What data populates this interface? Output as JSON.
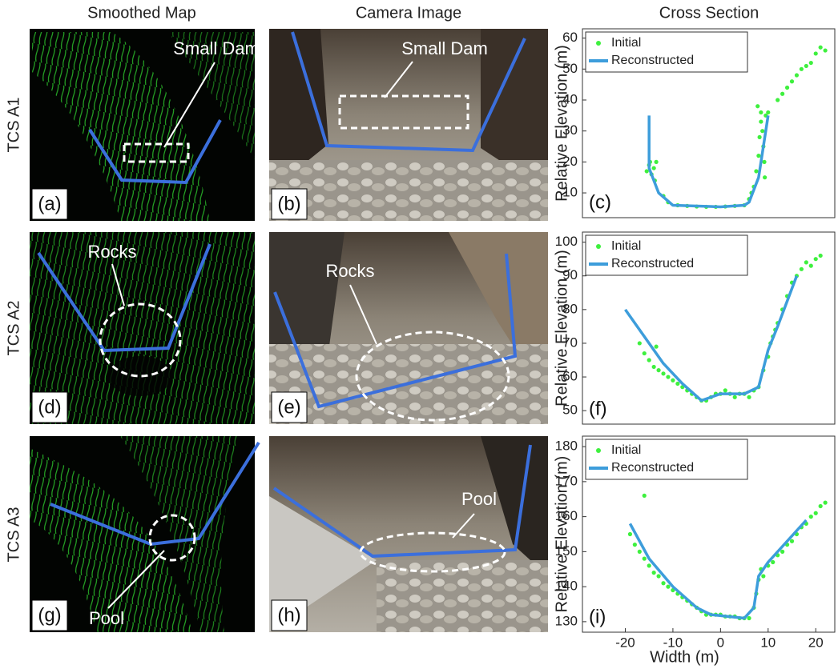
{
  "columns": [
    "Smoothed Map",
    "Camera Image",
    "Cross Section"
  ],
  "rows": [
    {
      "label": "TCS A1",
      "map_panel": "(a)",
      "camera_panel": "(b)",
      "map_note": "Small Dam",
      "camera_note": "Small Dam"
    },
    {
      "label": "TCS A2",
      "map_panel": "(d)",
      "camera_panel": "(e)",
      "map_note": "Rocks",
      "camera_note": "Rocks"
    },
    {
      "label": "TCS A3",
      "map_panel": "(g)",
      "camera_panel": "(h)",
      "map_note": "Pool",
      "camera_note": "Pool"
    }
  ],
  "chart_data": [
    {
      "type": "line",
      "panel": "(c)",
      "ylabel": "Relative Elevation (m)",
      "xlim": [
        -29,
        24
      ],
      "ylim": [
        2,
        63
      ],
      "yticks": [
        10,
        20,
        30,
        40,
        50,
        60
      ],
      "legend": "upper left",
      "series": [
        {
          "name": "Initial",
          "style": "scatter",
          "color": "#3ef03e",
          "x": [
            -15.5,
            -15,
            -14.8,
            -14.5,
            -14,
            -13.5,
            -13.8,
            -12,
            -11,
            -9,
            -7,
            -5,
            -3,
            -1,
            1,
            3,
            5,
            6,
            6.5,
            7,
            7.5,
            8,
            8.2,
            8.5,
            8.8,
            9,
            9.2,
            9.5,
            10,
            8.5,
            7.8,
            9.3,
            12,
            13,
            14,
            15,
            16,
            17,
            18,
            19,
            20,
            21,
            22
          ],
          "values": [
            17,
            19,
            20,
            16,
            18,
            20,
            14,
            9,
            7,
            6,
            5.8,
            5.6,
            5.5,
            5.5,
            5.6,
            5.8,
            6,
            8,
            10,
            12,
            17,
            22,
            28,
            33,
            30,
            25,
            20,
            35,
            36,
            36,
            38,
            15,
            40,
            42,
            44,
            46,
            48,
            50,
            51,
            52,
            55,
            57,
            56
          ]
        },
        {
          "name": "Reconstructed",
          "style": "line",
          "color": "#3d9ddb",
          "x": [
            -15,
            -15,
            -13,
            -10,
            0,
            5,
            6,
            8,
            9,
            10
          ],
          "values": [
            35,
            18,
            10,
            6,
            5.5,
            6,
            7,
            15,
            25,
            35
          ]
        }
      ]
    },
    {
      "type": "line",
      "panel": "(f)",
      "ylabel": "Relative Elevation (m)",
      "xlim": [
        -29,
        24
      ],
      "ylim": [
        46,
        103
      ],
      "yticks": [
        50,
        60,
        70,
        80,
        90,
        100
      ],
      "legend": "upper left",
      "series": [
        {
          "name": "Initial",
          "style": "scatter",
          "color": "#3ef03e",
          "x": [
            -13.5,
            -17,
            -16,
            -15,
            -14,
            -13,
            -12,
            -11,
            -10,
            -9,
            -8,
            -7,
            -6,
            -5,
            -4,
            -3,
            -2,
            -1,
            0,
            1,
            2,
            3,
            4,
            5,
            6,
            7,
            8,
            9,
            10,
            10.5,
            11,
            11.5,
            12,
            13,
            14,
            15,
            16,
            17,
            18,
            19,
            20,
            21
          ],
          "values": [
            69,
            70,
            67,
            65,
            63,
            62,
            61,
            60,
            59,
            58,
            57,
            56,
            55,
            54,
            53,
            53,
            54,
            55,
            55,
            56,
            55,
            54,
            55,
            55,
            54,
            56,
            57,
            62,
            66,
            70,
            72,
            74,
            76,
            80,
            84,
            88,
            90,
            92,
            94,
            93,
            95,
            96
          ]
        },
        {
          "name": "Reconstructed",
          "style": "line",
          "color": "#3d9ddb",
          "x": [
            -20,
            -12,
            -8,
            -4,
            0,
            5,
            8,
            10,
            12,
            16
          ],
          "values": [
            80,
            64,
            58,
            53,
            55,
            55,
            57,
            68,
            75,
            90
          ]
        }
      ]
    },
    {
      "type": "line",
      "panel": "(i)",
      "ylabel": "Relative Elevation (m)",
      "xlabel": "Width (m)",
      "xlim": [
        -29,
        24
      ],
      "ylim": [
        127,
        183
      ],
      "xticks": [
        -20,
        -10,
        0,
        10,
        20
      ],
      "yticks": [
        130,
        140,
        150,
        160,
        170,
        180
      ],
      "legend": "upper left",
      "series": [
        {
          "name": "Initial",
          "style": "scatter",
          "color": "#3ef03e",
          "x": [
            -19,
            -18,
            -17,
            -16,
            -15,
            -14,
            -13,
            -12,
            -11,
            -10,
            -9,
            -8,
            -7,
            -6,
            -5,
            -4,
            -3,
            -2,
            -1,
            0,
            1,
            2,
            3,
            4,
            5,
            6,
            7,
            7.5,
            8,
            8.5,
            9,
            10,
            11,
            12,
            13,
            14,
            15,
            16,
            17,
            18,
            19,
            20,
            21,
            22,
            -16
          ],
          "values": [
            155,
            152,
            150,
            148,
            146,
            144,
            143,
            141,
            140,
            139,
            138,
            137,
            136,
            135,
            134,
            133,
            132,
            132,
            132,
            132,
            131.5,
            131.5,
            131.5,
            131,
            131,
            131,
            134,
            138,
            142,
            145,
            143,
            146,
            147,
            149,
            150,
            152,
            153,
            155,
            157,
            158,
            160,
            161,
            163,
            164,
            166
          ]
        },
        {
          "name": "Reconstructed",
          "style": "line",
          "color": "#3d9ddb",
          "x": [
            -19,
            -15,
            -10,
            -5,
            -2,
            5,
            7,
            8,
            10,
            18
          ],
          "values": [
            158,
            148,
            140,
            134,
            132,
            131,
            134,
            143,
            147,
            159
          ]
        }
      ]
    }
  ]
}
